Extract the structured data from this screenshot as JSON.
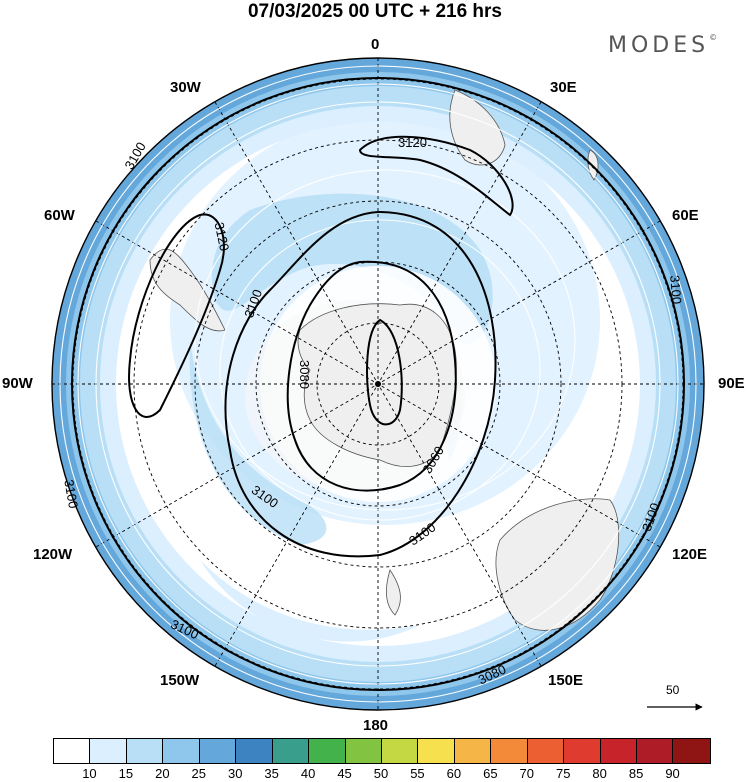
{
  "title": "07/03/2025  00 UTC  + 216 hrs",
  "brand": "MODES",
  "brand_mark": "©",
  "longitude_labels": {
    "lon_0": "0",
    "lon_30e": "30E",
    "lon_60e": "60E",
    "lon_90e": "90E",
    "lon_120e": "120E",
    "lon_150e": "150E",
    "lon_180": "180",
    "lon_150w": "150W",
    "lon_120w": "120W",
    "lon_90w": "90W",
    "lon_60w": "60W",
    "lon_30w": "30W"
  },
  "contour_labels": [
    "3120",
    "3120",
    "3100",
    "3100",
    "3100",
    "3100",
    "3100",
    "3100",
    "3100",
    "3100",
    "3080",
    "3080",
    "3060"
  ],
  "reference_vector": "50",
  "colorbar": {
    "colors": [
      "#ffffff",
      "#dcefff",
      "#b8dff6",
      "#8fc7ec",
      "#64a7da",
      "#3d82c1",
      "#3a9e8c",
      "#43b24b",
      "#82c341",
      "#c4d843",
      "#f7e04e",
      "#f6b547",
      "#f28a3a",
      "#ec5f33",
      "#df3b2f",
      "#c7232a",
      "#ad1c27",
      "#8f1515"
    ],
    "ticks": [
      "10",
      "15",
      "20",
      "25",
      "30",
      "35",
      "40",
      "45",
      "50",
      "55",
      "60",
      "65",
      "70",
      "75",
      "80",
      "85",
      "90"
    ]
  }
}
